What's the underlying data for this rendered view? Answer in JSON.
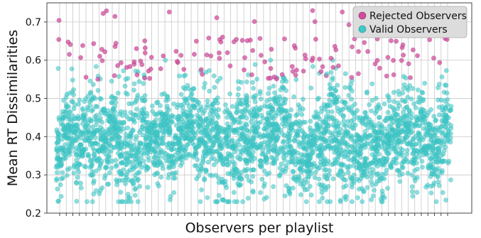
{
  "chart_data": {
    "type": "scatter",
    "xlabel": "Observers per playlist",
    "ylabel": "Mean RT Dissimilarities",
    "ylim": [
      0.2,
      0.75
    ],
    "yticks": [
      0.2,
      0.3,
      0.4,
      0.5,
      0.6,
      0.7
    ],
    "ytick_labels": [
      "0.2",
      "0.3",
      "0.4",
      "0.5",
      "0.6",
      "0.7"
    ],
    "x_tick_labels_shown": false,
    "grid": true,
    "legend_position": "top-right",
    "playlists": 60,
    "colors": {
      "valid": "#3fc8c8",
      "rejected": "#d04c9c",
      "grid": "#c8c8c8",
      "legend_bg": "#dcdcdc"
    },
    "series": [
      {
        "name": "Rejected Observers",
        "color": "#d04c9c",
        "y_range": [
          0.55,
          0.73
        ],
        "count_approx": 150
      },
      {
        "name": "Valid Observers",
        "color": "#3fc8c8",
        "y_range": [
          0.23,
          0.6
        ],
        "count_approx": 3000
      }
    ]
  }
}
